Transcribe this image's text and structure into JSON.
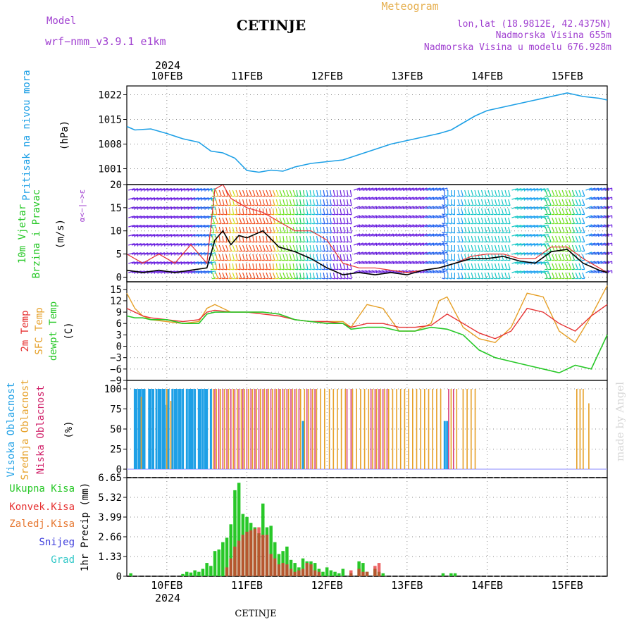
{
  "header": {
    "model_label": "Model",
    "model_name": "wrf−nmm_v3.9.1  e1km",
    "station_title": "CETINJE",
    "product": "Meteogram",
    "lonlat": "lon,lat (18.9812E, 42.4375N)",
    "altitude": "Nadmorska Visina 655m",
    "model_altitude": "Nadmorska Visina u modelu 676.928m",
    "year": "2024",
    "footer_station": "CETINJE",
    "watermark": "made by Angel"
  },
  "colors": {
    "pressure": "#1ea0e6",
    "temp2m": "#e63232",
    "sfc": "#e6a028",
    "dewpt": "#28c828",
    "high_cloud": "#1ea0e6",
    "mid_cloud": "#e6a028",
    "low_cloud": "#d2286e",
    "total_precip": "#28c828",
    "conv_precip": "#e63232",
    "frozen": "#e67832",
    "snow": "#3c3cdc",
    "graupel": "#32c8c8",
    "purple_text": "#a040d0",
    "wind_speed": "#000000",
    "gust": "#e63232"
  },
  "chart_data": [
    {
      "id": "pressure",
      "type": "line",
      "ylabel": [
        "Pritisak na nivou mora",
        "(hPa)"
      ],
      "yticks": [
        1001,
        1008,
        1015,
        1022
      ],
      "ylim": [
        996.5,
        1024.5
      ],
      "xlim_days": [
        9.5,
        15.5
      ],
      "x_ticks": [
        "10FEB",
        "11FEB",
        "12FEB",
        "13FEB",
        "14FEB",
        "15FEB"
      ],
      "grid": true,
      "series": [
        {
          "name": "",
          "x": [
            9.5,
            9.6,
            9.8,
            10.0,
            10.2,
            10.4,
            10.55,
            10.7,
            10.85,
            11.0,
            11.15,
            11.3,
            11.45,
            11.6,
            11.8,
            12.0,
            12.2,
            12.4,
            12.6,
            12.8,
            13.0,
            13.2,
            13.4,
            13.55,
            13.7,
            13.85,
            14.0,
            14.2,
            14.4,
            14.6,
            14.8,
            15.0,
            15.2,
            15.4,
            15.5
          ],
          "values": [
            1013,
            1012,
            1012.3,
            1011,
            1009.5,
            1008.5,
            1006,
            1005.5,
            1004,
            1000.5,
            1000,
            1000.6,
            1000.3,
            1001.5,
            1002.5,
            1003,
            1003.5,
            1005,
            1006.5,
            1008,
            1009,
            1010,
            1011,
            1012,
            1014,
            1016,
            1017.5,
            1018.5,
            1019.5,
            1020.5,
            1021.5,
            1022.5,
            1021.5,
            1021,
            1020.5
          ]
        }
      ]
    },
    {
      "id": "wind",
      "type": "line",
      "ylabel": [
        "10m Vjetar",
        "Brzina i Pravac",
        "(m/s)"
      ],
      "direction_key": "α<−|−>ε",
      "yticks": [
        0,
        5,
        10,
        15,
        20
      ],
      "ylim": [
        -1,
        20
      ],
      "xlim_days": [
        9.5,
        15.5
      ],
      "grid": true,
      "series": [
        {
          "name": "speed",
          "x": [
            9.5,
            9.7,
            9.9,
            10.1,
            10.3,
            10.5,
            10.6,
            10.7,
            10.8,
            10.9,
            11.0,
            11.2,
            11.4,
            11.6,
            11.8,
            12.0,
            12.2,
            12.4,
            12.6,
            12.8,
            13.0,
            13.2,
            13.4,
            13.6,
            13.8,
            14.0,
            14.2,
            14.4,
            14.6,
            14.8,
            15.0,
            15.2,
            15.4,
            15.5
          ],
          "values": [
            1.5,
            1,
            1.5,
            1,
            1.5,
            2,
            8,
            10,
            7,
            9,
            8.5,
            10,
            6.5,
            5.5,
            4,
            2,
            0.5,
            1,
            0.5,
            1,
            0.5,
            1.5,
            2,
            3,
            4,
            4,
            4.5,
            3.5,
            3,
            5.5,
            6,
            3,
            1.5,
            1
          ]
        },
        {
          "name": "gust",
          "x": [
            9.5,
            9.7,
            9.9,
            10.1,
            10.3,
            10.5,
            10.6,
            10.7,
            10.8,
            10.9,
            11.0,
            11.2,
            11.4,
            11.6,
            11.8,
            12.0,
            12.2,
            12.4,
            12.6,
            12.8,
            13.0,
            13.2,
            13.4,
            13.6,
            13.8,
            14.0,
            14.2,
            14.4,
            14.6,
            14.8,
            15.0,
            15.2,
            15.4,
            15.5
          ],
          "values": [
            5,
            3,
            5,
            3,
            7,
            3,
            19,
            20,
            17,
            16,
            15,
            14,
            12,
            10,
            10,
            8,
            3,
            2,
            2,
            1.5,
            1,
            1.5,
            2,
            3,
            4.5,
            5,
            5,
            4,
            4,
            6.5,
            6.5,
            4,
            2,
            1
          ]
        }
      ]
    },
    {
      "id": "temperature",
      "type": "line",
      "ylabel": [
        "2m Temp",
        "SFC Temp",
        "dewpt Temp",
        "(C)"
      ],
      "yticks": [
        -9,
        -6,
        -3,
        0,
        3,
        6,
        9,
        12,
        15
      ],
      "ylim": [
        -9,
        17
      ],
      "xlim_days": [
        9.5,
        15.5
      ],
      "grid": true,
      "series": [
        {
          "name": "2m Temp",
          "x": [
            9.5,
            9.6,
            9.7,
            9.8,
            10.0,
            10.2,
            10.4,
            10.5,
            10.6,
            10.8,
            11.0,
            11.2,
            11.4,
            11.6,
            11.8,
            12.0,
            12.2,
            12.3,
            12.5,
            12.7,
            12.9,
            13.1,
            13.3,
            13.5,
            13.7,
            13.9,
            14.1,
            14.3,
            14.5,
            14.7,
            14.9,
            15.1,
            15.3,
            15.5
          ],
          "values": [
            10,
            9,
            8,
            7.5,
            7,
            6.5,
            7,
            9,
            9.5,
            9,
            9,
            8.5,
            8,
            7,
            6.5,
            6.5,
            6,
            5,
            6,
            6,
            5,
            5,
            5.5,
            8.5,
            6,
            3.5,
            2,
            4,
            10,
            9,
            6,
            4,
            8,
            11
          ]
        },
        {
          "name": "SFC Temp",
          "x": [
            9.5,
            9.6,
            9.7,
            9.8,
            10.0,
            10.2,
            10.4,
            10.5,
            10.6,
            10.8,
            11.0,
            11.2,
            11.4,
            11.6,
            11.8,
            12.0,
            12.2,
            12.3,
            12.5,
            12.7,
            12.9,
            13.1,
            13.3,
            13.4,
            13.5,
            13.7,
            13.9,
            14.1,
            14.3,
            14.5,
            14.7,
            14.9,
            15.1,
            15.3,
            15.5
          ],
          "values": [
            14,
            10,
            8,
            7,
            6.5,
            6,
            6.5,
            10,
            11,
            9,
            9,
            9,
            8.5,
            7,
            6.5,
            6.5,
            6.5,
            5,
            11,
            10,
            4,
            4,
            6,
            12,
            13,
            5,
            2,
            1,
            5,
            14,
            13,
            4,
            1,
            8,
            16
          ]
        },
        {
          "name": "dewpt Temp",
          "x": [
            9.5,
            9.6,
            9.7,
            9.8,
            10.0,
            10.2,
            10.4,
            10.5,
            10.6,
            10.8,
            11.0,
            11.2,
            11.4,
            11.6,
            11.8,
            12.0,
            12.2,
            12.3,
            12.5,
            12.7,
            12.9,
            13.1,
            13.3,
            13.5,
            13.7,
            13.9,
            14.1,
            14.3,
            14.5,
            14.7,
            14.9,
            15.1,
            15.3,
            15.5
          ],
          "values": [
            8,
            7.5,
            7.5,
            7,
            7,
            6,
            6,
            8.5,
            9,
            9,
            9,
            9,
            8.5,
            7,
            6.5,
            6,
            6,
            4.5,
            5,
            5,
            4,
            4,
            5,
            4.5,
            3,
            -1,
            -3,
            -4,
            -5,
            -6,
            -7,
            -5,
            -6,
            3
          ]
        }
      ]
    },
    {
      "id": "cloud",
      "type": "bar",
      "ylabel": [
        "Visoka Oblacnost",
        "Srednja Oblacnost",
        "Niska Oblacnost",
        "(%)"
      ],
      "yticks": [
        0,
        25,
        50,
        75,
        100
      ],
      "ylim": [
        0,
        100
      ],
      "xlim_days": [
        9.5,
        15.5
      ],
      "grid": true,
      "series": [
        {
          "name": "Visoka Oblacnost",
          "x": [
            9.6,
            9.62,
            9.65,
            9.67,
            9.7,
            9.72,
            9.78,
            9.8,
            9.83,
            9.87,
            9.9,
            9.92,
            9.95,
            9.97,
            10.0,
            10.02,
            10.07,
            10.1,
            10.12,
            10.15,
            10.17,
            10.2,
            10.25,
            10.28,
            10.3,
            10.32,
            10.35,
            10.4,
            10.42,
            10.45,
            10.48,
            10.5,
            10.55,
            11.7,
            13.47,
            13.5
          ],
          "values": [
            100,
            100,
            100,
            100,
            100,
            100,
            100,
            100,
            100,
            100,
            100,
            100,
            100,
            100,
            80,
            100,
            100,
            100,
            100,
            100,
            100,
            100,
            100,
            100,
            100,
            100,
            100,
            100,
            100,
            100,
            100,
            100,
            100,
            60,
            60,
            60
          ]
        },
        {
          "name": "Srednja Oblacnost",
          "x": [
            9.68,
            10.0,
            10.05,
            10.58,
            10.62,
            10.67,
            10.72,
            10.77,
            10.83,
            10.88,
            10.93,
            10.97,
            11.02,
            11.07,
            11.12,
            11.17,
            11.22,
            11.27,
            11.32,
            11.37,
            11.42,
            11.47,
            11.52,
            11.57,
            11.62,
            11.67,
            11.72,
            11.77,
            11.82,
            11.87,
            11.92,
            11.97,
            12.03,
            12.08,
            12.13,
            12.18,
            12.23,
            12.32,
            12.37,
            12.42,
            12.47,
            12.52,
            12.57,
            12.62,
            12.67,
            12.72,
            12.77,
            12.82,
            12.87,
            12.92,
            12.97,
            13.02,
            13.07,
            13.12,
            13.17,
            13.22,
            13.27,
            13.32,
            13.37,
            13.42,
            13.55,
            13.62,
            13.7,
            13.75,
            13.8,
            13.85,
            15.12,
            15.16,
            15.2,
            15.27
          ],
          "values": [
            90,
            100,
            85,
            100,
            100,
            100,
            100,
            100,
            100,
            100,
            100,
            100,
            100,
            100,
            100,
            100,
            100,
            100,
            100,
            100,
            100,
            100,
            100,
            100,
            100,
            100,
            100,
            100,
            100,
            100,
            100,
            100,
            100,
            100,
            100,
            100,
            100,
            100,
            100,
            100,
            100,
            100,
            100,
            100,
            100,
            100,
            100,
            100,
            100,
            100,
            100,
            100,
            100,
            100,
            100,
            100,
            100,
            100,
            100,
            100,
            100,
            100,
            100,
            100,
            100,
            100,
            100,
            100,
            100,
            82
          ]
        },
        {
          "name": "Niska Oblacnost",
          "x": [
            10.6,
            10.65,
            10.7,
            10.75,
            10.8,
            10.85,
            10.9,
            10.95,
            11.0,
            11.05,
            11.1,
            11.15,
            11.2,
            11.25,
            11.3,
            11.35,
            11.4,
            11.45,
            11.5,
            11.55,
            11.6,
            11.65,
            11.75,
            11.8,
            11.85,
            12.25,
            12.3,
            12.55,
            12.6,
            12.65,
            12.7,
            12.75,
            13.52,
            13.58
          ],
          "values": [
            100,
            100,
            100,
            100,
            100,
            100,
            100,
            100,
            100,
            100,
            100,
            100,
            100,
            100,
            100,
            100,
            100,
            100,
            100,
            100,
            100,
            100,
            100,
            100,
            100,
            100,
            100,
            100,
            100,
            100,
            100,
            100,
            100,
            100
          ]
        }
      ]
    },
    {
      "id": "precip",
      "type": "bar",
      "ylabel": [
        "Ukupna Kisa",
        "Konvek.Kisa",
        "Zaledj.Kisa",
        "Snijeg",
        "Grad",
        "1hr Precip (mm)"
      ],
      "yticks": [
        0,
        1.33,
        2.66,
        3.99,
        5.32,
        6.65
      ],
      "ytick_labels": [
        "0",
        "1.33",
        "2.66",
        "3.99",
        "5.32",
        "6.65"
      ],
      "ylim": [
        0,
        6.65
      ],
      "xlim_days": [
        9.5,
        15.5
      ],
      "grid": true,
      "series": [
        {
          "name": "Ukupna Kisa",
          "x": [
            9.55,
            10.2,
            10.25,
            10.3,
            10.35,
            10.4,
            10.45,
            10.5,
            10.55,
            10.6,
            10.65,
            10.7,
            10.75,
            10.8,
            10.85,
            10.9,
            10.95,
            11.0,
            11.05,
            11.1,
            11.15,
            11.2,
            11.25,
            11.3,
            11.35,
            11.4,
            11.45,
            11.5,
            11.55,
            11.6,
            11.65,
            11.7,
            11.75,
            11.8,
            11.85,
            11.9,
            11.95,
            12.0,
            12.05,
            12.1,
            12.15,
            12.2,
            12.3,
            12.4,
            12.45,
            12.5,
            12.6,
            12.65,
            12.7,
            13.45,
            13.55,
            13.6
          ],
          "values": [
            0.2,
            0.15,
            0.3,
            0.25,
            0.4,
            0.3,
            0.5,
            0.9,
            0.7,
            1.7,
            1.8,
            2.3,
            2.6,
            3.5,
            5.8,
            6.3,
            4.2,
            4.0,
            3.6,
            3.3,
            2.9,
            4.9,
            3.3,
            3.4,
            2.3,
            1.5,
            1.7,
            2.0,
            1.1,
            0.9,
            0.6,
            1.2,
            1.0,
            1.0,
            0.9,
            0.5,
            0.3,
            0.6,
            0.4,
            0.3,
            0.2,
            0.5,
            0.2,
            1.0,
            0.9,
            0.3,
            0.5,
            0.3,
            0.2,
            0.2,
            0.2,
            0.2
          ]
        },
        {
          "name": "Konvek.Kisa",
          "x": [
            10.75,
            10.8,
            10.85,
            10.9,
            10.95,
            11.0,
            11.05,
            11.1,
            11.15,
            11.2,
            11.25,
            11.3,
            11.35,
            11.4,
            11.45,
            11.5,
            11.55,
            11.6,
            11.65,
            11.7,
            11.75,
            11.8,
            11.85,
            11.9,
            12.3,
            12.4,
            12.45,
            12.5,
            12.6,
            12.65
          ],
          "values": [
            0.6,
            1.2,
            2.0,
            2.4,
            2.8,
            3.0,
            3.1,
            3.2,
            3.3,
            2.8,
            2.8,
            1.5,
            1.2,
            0.8,
            0.9,
            0.8,
            0.5,
            0.3,
            0.4,
            0.5,
            0.9,
            0.8,
            0.4,
            0.3,
            0.4,
            0.5,
            0.3,
            0.3,
            0.7,
            0.9
          ]
        }
      ]
    }
  ],
  "legend": {
    "precip_items": [
      "Ukupna Kisa",
      "Konvek.Kisa",
      "Zaledj.Kisa",
      "Snijeg",
      "Grad"
    ]
  }
}
